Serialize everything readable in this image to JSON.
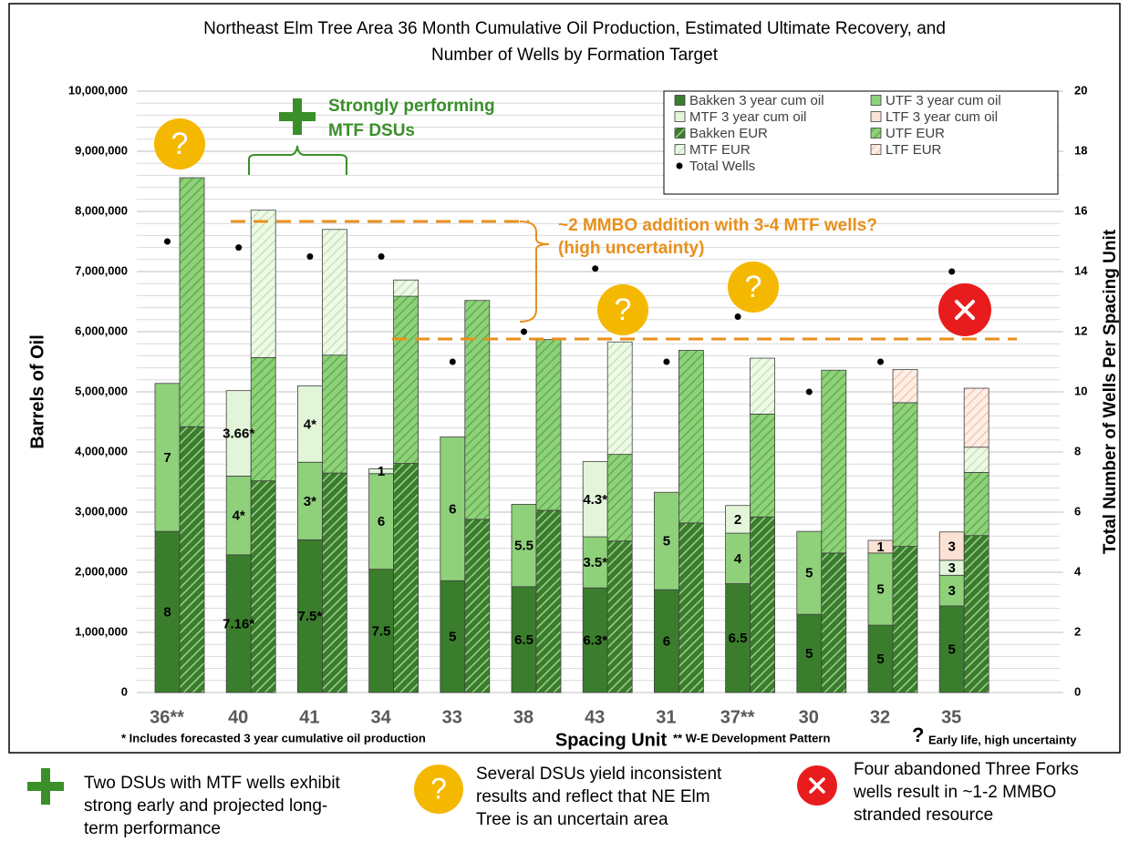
{
  "chart_data": {
    "type": "bar",
    "title": [
      "Northeast Elm Tree Area 36 Month Cumulative Oil Production, Estimated Ultimate Recovery, and",
      "Number of Wells by Formation Target"
    ],
    "y_label": "Barrels of Oil",
    "y2_label": "Total Number of Wells Per Spacing Unit",
    "x_label": "Spacing Unit",
    "categories": [
      "36**",
      "40",
      "41",
      "34",
      "33",
      "38",
      "43",
      "31",
      "37**",
      "30",
      "32",
      "35"
    ],
    "series": [
      {
        "name": "Bakken 3 year cum oil",
        "group": "cum",
        "color": "#3a7d2c",
        "values": [
          2680000,
          2290000,
          2540000,
          2050000,
          1860000,
          1760000,
          1740000,
          1710000,
          1810000,
          1300000,
          1120000,
          1440000
        ],
        "segment_labels": [
          "8",
          "7.16*",
          "7.5*",
          "7.5",
          "5",
          "6.5",
          "6.3*",
          "6",
          "6.5",
          "5",
          "5",
          "5"
        ]
      },
      {
        "name": "UTF 3 year cum oil",
        "group": "cum",
        "color": "#8fd07b",
        "values": [
          2460000,
          1310000,
          1290000,
          1590000,
          2390000,
          1370000,
          850000,
          1620000,
          840000,
          1380000,
          1200000,
          510000
        ],
        "segment_labels": [
          "7",
          "4*",
          "3*",
          "6",
          "6",
          "5.5",
          "3.5*",
          "5",
          "4",
          "5",
          "5",
          "3"
        ]
      },
      {
        "name": "MTF 3 year cum oil",
        "group": "cum",
        "color": "#e3f5d9",
        "values": [
          null,
          1420000,
          1270000,
          80000,
          null,
          null,
          1250000,
          null,
          460000,
          null,
          null,
          250000
        ],
        "segment_labels": [
          null,
          "3.66*",
          "4*",
          "1",
          null,
          null,
          "4.3*",
          null,
          "2",
          null,
          null,
          "3"
        ]
      },
      {
        "name": "LTF 3 year cum oil",
        "group": "cum",
        "color": "#fbe2d5",
        "values": [
          null,
          null,
          null,
          null,
          null,
          null,
          null,
          null,
          null,
          null,
          210000,
          470000
        ],
        "segment_labels": [
          null,
          null,
          null,
          null,
          null,
          null,
          null,
          null,
          null,
          null,
          "1",
          "3"
        ]
      },
      {
        "name": "Bakken EUR",
        "group": "eur",
        "color": "#3a7d2c",
        "hatch": "#9fcf8f",
        "values": [
          4420000,
          3520000,
          3650000,
          3810000,
          2880000,
          3030000,
          2520000,
          2820000,
          2920000,
          2320000,
          2430000,
          2610000
        ]
      },
      {
        "name": "UTF EUR",
        "group": "eur",
        "color": "#8fd07b",
        "hatch": "#5fae4b",
        "values": [
          4140000,
          2050000,
          1960000,
          2780000,
          3640000,
          2840000,
          1440000,
          2870000,
          1710000,
          3040000,
          2390000,
          1050000
        ]
      },
      {
        "name": "MTF EUR",
        "group": "eur",
        "color": "#eef9e8",
        "hatch": "#c4e6b5",
        "values": [
          null,
          2450000,
          2090000,
          270000,
          null,
          null,
          1870000,
          null,
          930000,
          null,
          null,
          420000
        ]
      },
      {
        "name": "LTF EUR",
        "group": "eur",
        "color": "#fdeee6",
        "hatch": "#f2c9b3",
        "values": [
          null,
          null,
          null,
          null,
          null,
          null,
          null,
          null,
          null,
          null,
          550000,
          980000
        ]
      }
    ],
    "wells": {
      "name": "Total Wells",
      "type": "scatter",
      "axis": "y2",
      "color": "#000000",
      "values": [
        15,
        14.8,
        14.5,
        14.5,
        11,
        12,
        14.1,
        11,
        12.5,
        10,
        11,
        14
      ]
    },
    "ylim": [
      0,
      10000000
    ],
    "yticks": [
      0,
      {
        "value": 1000000,
        "label": "1,000,000"
      },
      {
        "value": 2000000,
        "label": "2,000,000"
      },
      {
        "value": 3000000,
        "label": "3,000,000"
      },
      {
        "value": 4000000,
        "label": "4,000,000"
      },
      {
        "value": 5000000,
        "label": "5,000,000"
      },
      {
        "value": 6000000,
        "label": "6,000,000"
      },
      {
        "value": 7000000,
        "label": "7,000,000"
      },
      {
        "value": 8000000,
        "label": "8,000,000"
      },
      {
        "value": 9000000,
        "label": "9,000,000"
      },
      {
        "value": 10000000,
        "label": "10,000,000"
      }
    ],
    "y2lim": [
      0,
      20
    ],
    "y2ticks": [
      0,
      2,
      4,
      6,
      8,
      10,
      12,
      14,
      16,
      18,
      20
    ],
    "grid": true,
    "legend": "upper right",
    "footnotes": [
      "* Includes forecasted 3 year cumulative oil production",
      "** W-E Development Pattern"
    ],
    "footnote_symbol": "?",
    "footnote_symbol_text": "Early life, high uncertainty",
    "annotations": {
      "question_mark": "?",
      "strong_text": [
        "Strongly performing",
        "MTF DSUs"
      ],
      "mmbo_text": [
        "~2 MMBO addition with 3-4 MTF wells?",
        "(high uncertainty)"
      ]
    }
  },
  "footer": {
    "items": [
      [
        "Two DSUs with MTF wells exhibit",
        "strong early and projected long-",
        "term performance"
      ],
      [
        "Several DSUs yield inconsistent",
        "results and reflect that NE Elm",
        "Tree is an uncertain area"
      ],
      [
        "Four abandoned Three Forks",
        "wells result in ~1-2 MMBO",
        "stranded resource"
      ]
    ]
  }
}
